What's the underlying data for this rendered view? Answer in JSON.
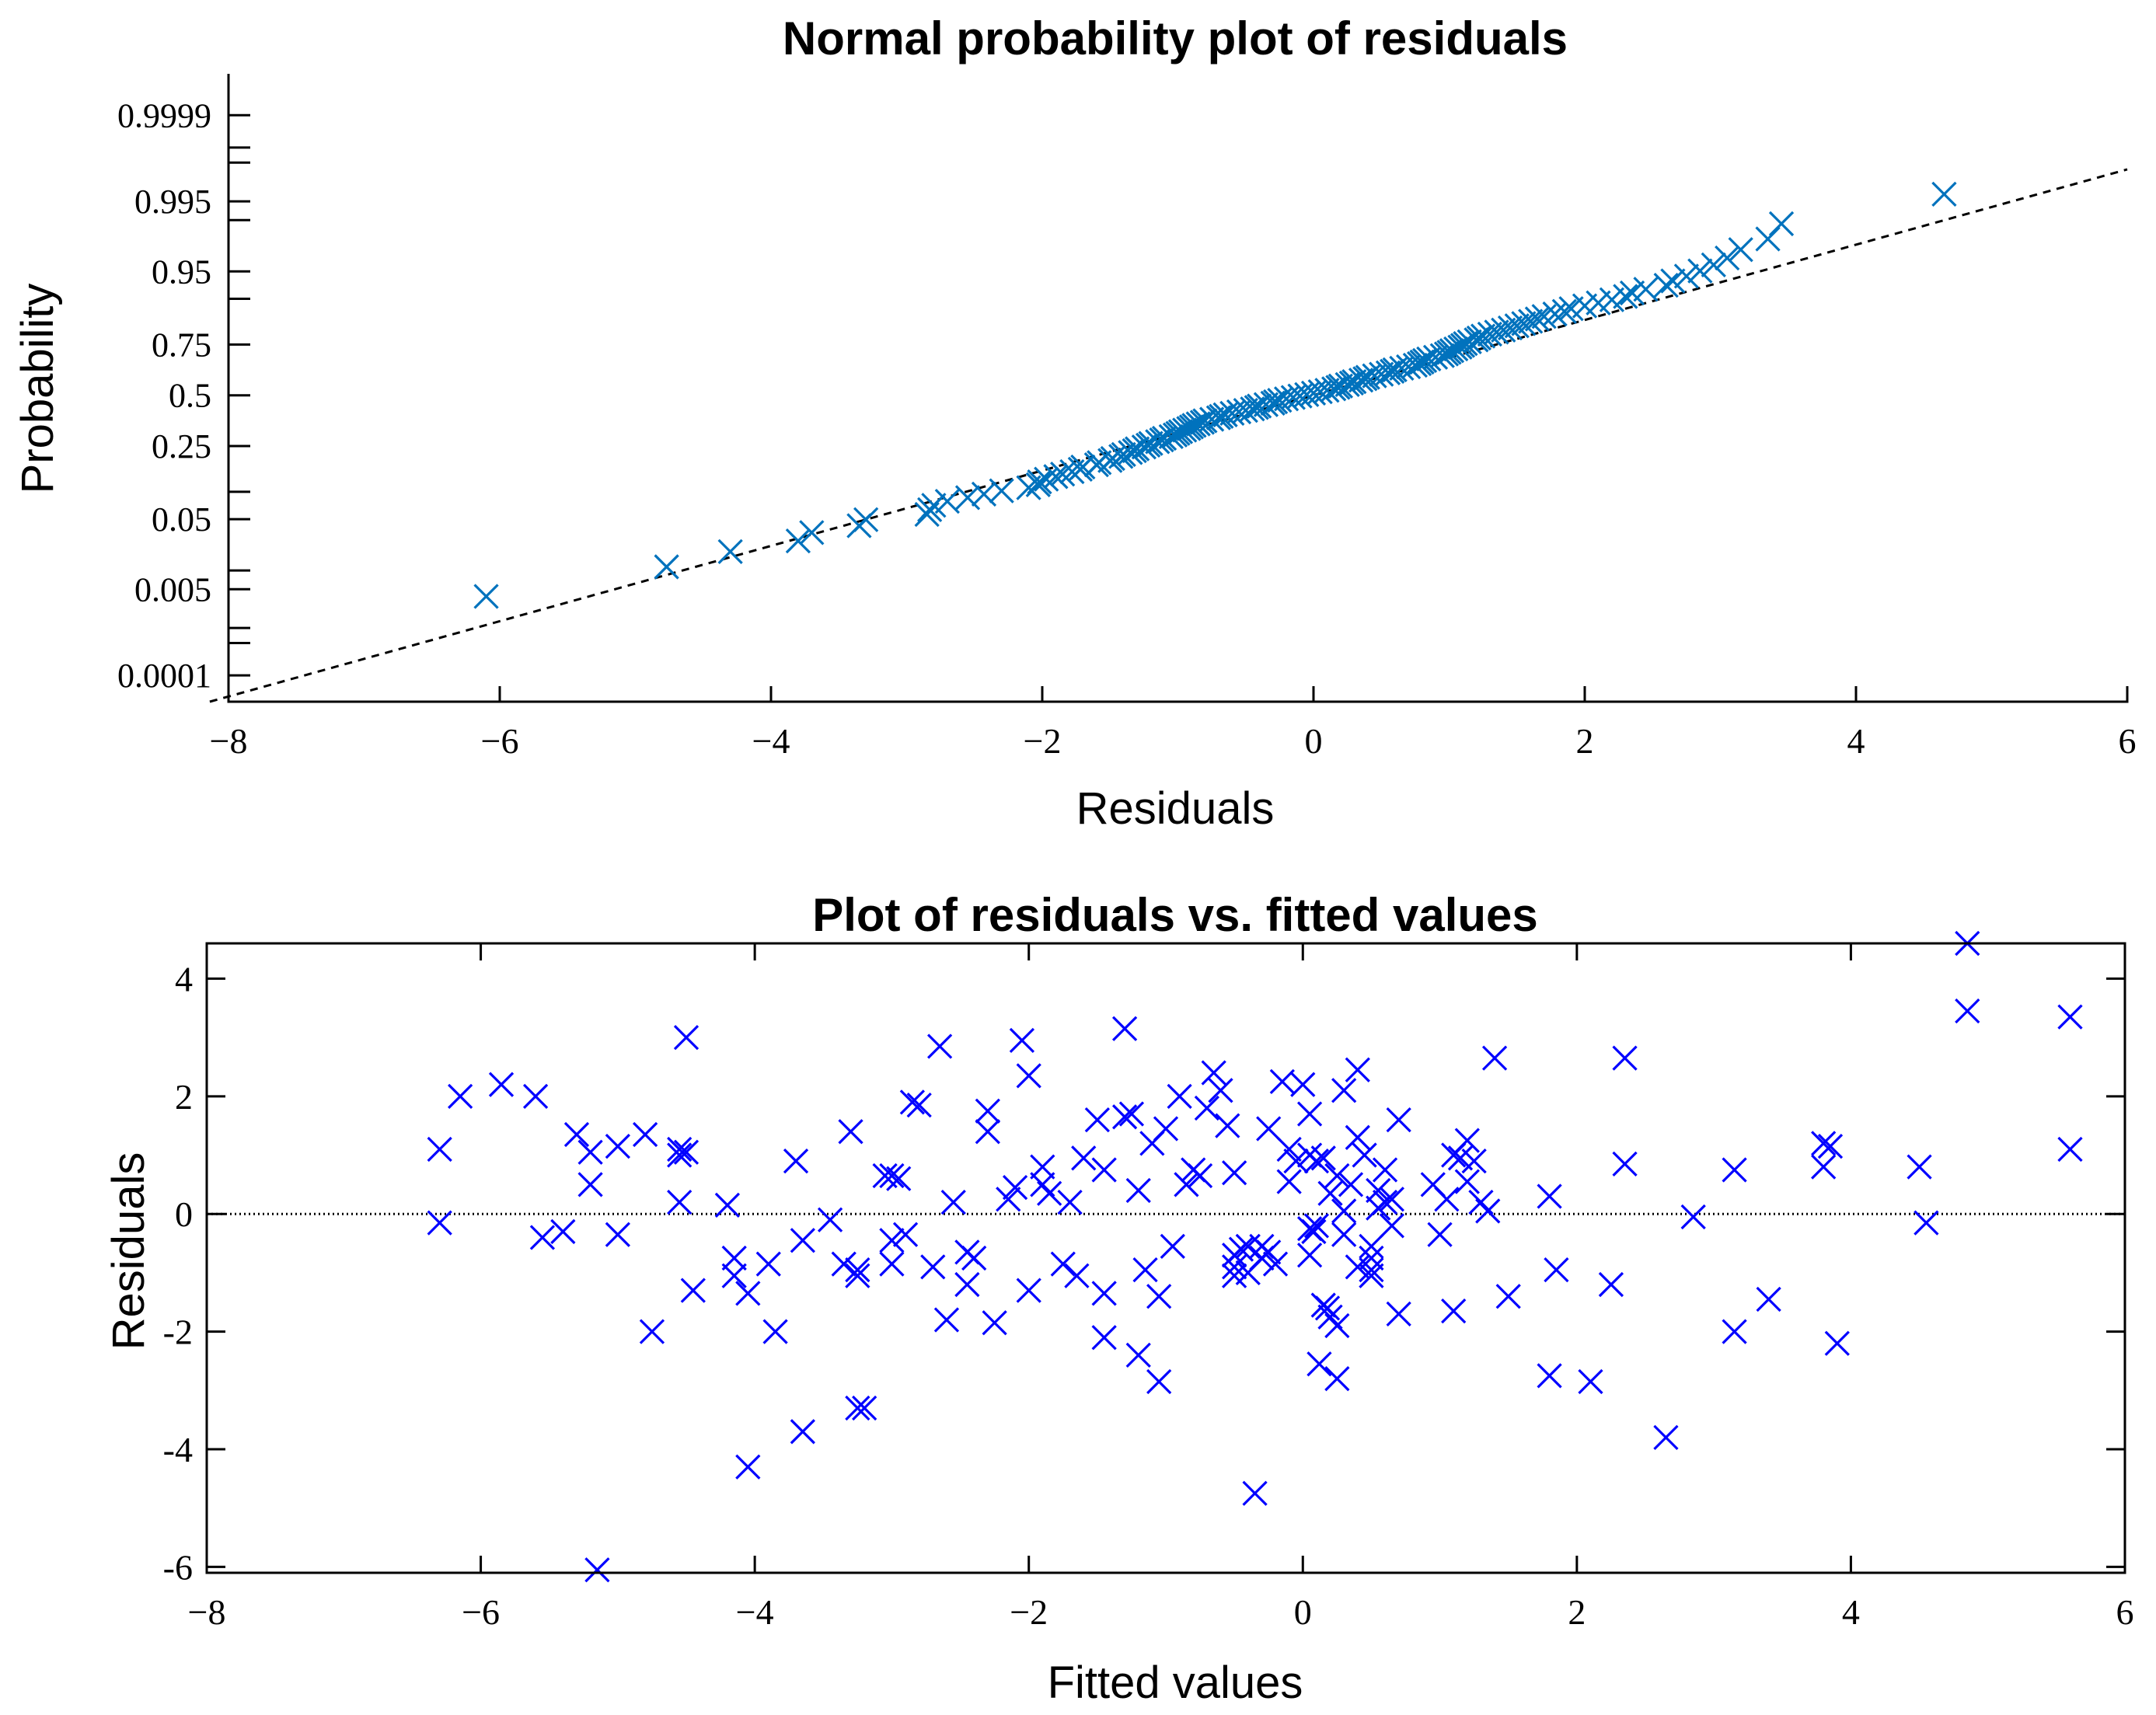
{
  "chart_data": [
    {
      "type": "scatter",
      "title": "Normal probability plot of residuals",
      "xlabel": "Residuals",
      "ylabel": "Probability",
      "xlim": [
        -8,
        6
      ],
      "xticks": [
        -8,
        -6,
        -4,
        -2,
        0,
        2,
        4,
        6
      ],
      "xtick_labels": [
        "−8",
        "−6",
        "−4",
        "−2",
        "0",
        "2",
        "4",
        "6"
      ],
      "yscale": "normal-probability",
      "yticks": [
        0.0001,
        0.005,
        0.05,
        0.25,
        0.5,
        0.75,
        0.95,
        0.995,
        0.9999
      ],
      "ytick_labels": [
        "0.0001",
        "0.005",
        "0.05",
        "0.25",
        "0.5",
        "0.75",
        "0.95",
        "0.995",
        "0.9999"
      ],
      "yminor": [
        0.0005,
        0.001,
        0.01,
        0.1,
        0.9,
        0.99,
        0.999,
        0.9995
      ],
      "marker_color": "#0072BD",
      "reference_line": {
        "style": "dashed",
        "color": "#000000",
        "slope_per_residual": 0.5,
        "intercept": 0.0
      },
      "residuals": [
        -6.1,
        -4.77,
        -4.3,
        -3.8,
        -3.7,
        -3.35,
        -3.3,
        -2.85,
        -2.83,
        -2.8,
        -2.7,
        -2.55,
        -2.43,
        -2.3,
        -2.1,
        -2.03,
        -2.02,
        -1.97,
        -1.9,
        -1.85,
        -1.78,
        -1.72,
        -1.7,
        -1.6,
        -1.58,
        -1.5,
        -1.48,
        -1.42,
        -1.4,
        -1.35,
        -1.32,
        -1.3,
        -1.25,
        -1.22,
        -1.2,
        -1.15,
        -1.12,
        -1.1,
        -1.05,
        -1.02,
        -1.0,
        -0.98,
        -0.95,
        -0.92,
        -0.9,
        -0.88,
        -0.85,
        -0.82,
        -0.8,
        -0.75,
        -0.7,
        -0.68,
        -0.65,
        -0.6,
        -0.55,
        -0.5,
        -0.45,
        -0.42,
        -0.4,
        -0.35,
        -0.3,
        -0.28,
        -0.25,
        -0.2,
        -0.15,
        -0.1,
        -0.05,
        0.0,
        0.05,
        0.1,
        0.15,
        0.18,
        0.2,
        0.25,
        0.28,
        0.3,
        0.35,
        0.38,
        0.4,
        0.45,
        0.5,
        0.55,
        0.58,
        0.6,
        0.65,
        0.7,
        0.75,
        0.78,
        0.8,
        0.82,
        0.85,
        0.9,
        0.95,
        0.98,
        1.0,
        1.02,
        1.05,
        1.08,
        1.1,
        1.12,
        1.15,
        1.2,
        1.22,
        1.25,
        1.3,
        1.35,
        1.4,
        1.45,
        1.5,
        1.55,
        1.6,
        1.65,
        1.7,
        1.78,
        1.85,
        1.9,
        2.0,
        2.1,
        2.2,
        2.3,
        2.35,
        2.45,
        2.6,
        2.65,
        2.75,
        2.85,
        2.95,
        3.05,
        3.15,
        3.35,
        3.45,
        4.65
      ]
    },
    {
      "type": "scatter",
      "title": "Plot of residuals vs. fitted values",
      "xlabel": "Fitted values",
      "ylabel": "Residuals",
      "xlim": [
        -8,
        6
      ],
      "ylim": [
        -6.1,
        4.6
      ],
      "xticks": [
        -8,
        -6,
        -4,
        -2,
        0,
        2,
        4,
        6
      ],
      "xtick_labels": [
        "−8",
        "−6",
        "−4",
        "−2",
        "0",
        "2",
        "4",
        "6"
      ],
      "yticks": [
        4,
        2,
        0,
        -2,
        -4,
        -6
      ],
      "ytick_labels": [
        "4",
        "2",
        "0",
        "-2",
        "-4",
        "-6"
      ],
      "marker_color": "#0000FF",
      "zero_line": {
        "y": 0,
        "style": "dotted",
        "color": "#000000"
      },
      "points": [
        [
          -6.3,
          1.1
        ],
        [
          -6.3,
          -0.15
        ],
        [
          -6.15,
          2.0
        ],
        [
          -5.85,
          2.2
        ],
        [
          -5.6,
          2.0
        ],
        [
          -5.55,
          -0.4
        ],
        [
          -5.4,
          -0.3
        ],
        [
          -5.3,
          1.35
        ],
        [
          -5.2,
          1.05
        ],
        [
          -5.2,
          0.5
        ],
        [
          -5.0,
          1.15
        ],
        [
          -5.0,
          -0.35
        ],
        [
          -4.8,
          1.35
        ],
        [
          -4.75,
          -2.0
        ],
        [
          -4.55,
          1.1
        ],
        [
          -4.55,
          1.0
        ],
        [
          -4.55,
          0.2
        ],
        [
          -4.5,
          1.05
        ],
        [
          -4.5,
          3.0
        ],
        [
          -4.45,
          -1.3
        ],
        [
          -4.2,
          0.15
        ],
        [
          -4.15,
          -0.75
        ],
        [
          -4.15,
          -1.05
        ],
        [
          -4.05,
          -1.35
        ],
        [
          -4.05,
          -4.3
        ],
        [
          -3.9,
          -0.85
        ],
        [
          -3.85,
          -2.0
        ],
        [
          -3.7,
          0.9
        ],
        [
          -3.65,
          -0.45
        ],
        [
          -3.65,
          -3.7
        ],
        [
          -3.45,
          -0.1
        ],
        [
          -3.35,
          -0.85
        ],
        [
          -3.3,
          1.4
        ],
        [
          -3.25,
          -1.05
        ],
        [
          -3.25,
          -0.95
        ],
        [
          -3.25,
          -3.3
        ],
        [
          -3.0,
          0.65
        ],
        [
          -3.0,
          -0.85
        ],
        [
          -3.0,
          -0.45
        ],
        [
          -3.2,
          -3.3
        ],
        [
          -3.05,
          0.65
        ],
        [
          -2.95,
          0.6
        ],
        [
          -2.9,
          -0.35
        ],
        [
          -2.85,
          1.9
        ],
        [
          -2.8,
          1.85
        ],
        [
          -2.7,
          -0.9
        ],
        [
          -2.65,
          2.85
        ],
        [
          -2.6,
          -1.8
        ],
        [
          -2.55,
          0.2
        ],
        [
          -2.45,
          -0.65
        ],
        [
          -2.45,
          -1.2
        ],
        [
          -2.4,
          -0.75
        ],
        [
          -2.3,
          1.75
        ],
        [
          -2.3,
          1.4
        ],
        [
          -2.25,
          -1.85
        ],
        [
          -2.15,
          0.25
        ],
        [
          -2.1,
          0.45
        ],
        [
          -2.05,
          2.95
        ],
        [
          -2.0,
          2.35
        ],
        [
          -2.0,
          -1.3
        ],
        [
          -1.9,
          0.5
        ],
        [
          -1.9,
          0.8
        ],
        [
          -1.85,
          0.35
        ],
        [
          -1.75,
          -0.85
        ],
        [
          -1.7,
          0.2
        ],
        [
          -1.65,
          -1.05
        ],
        [
          -1.6,
          0.95
        ],
        [
          -1.5,
          1.6
        ],
        [
          -1.45,
          0.75
        ],
        [
          -1.45,
          -1.35
        ],
        [
          -1.45,
          -2.1
        ],
        [
          -1.3,
          3.15
        ],
        [
          -1.3,
          1.65
        ],
        [
          -1.25,
          1.7
        ],
        [
          -1.2,
          -2.4
        ],
        [
          -1.2,
          0.4
        ],
        [
          -1.1,
          1.2
        ],
        [
          -1.05,
          -1.4
        ],
        [
          -1.05,
          -2.85
        ],
        [
          -0.95,
          -0.55
        ],
        [
          -0.9,
          2.0
        ],
        [
          -0.85,
          0.5
        ],
        [
          -0.8,
          0.75
        ],
        [
          -0.75,
          0.65
        ],
        [
          -0.7,
          1.8
        ],
        [
          -0.65,
          2.4
        ],
        [
          -0.6,
          2.1
        ],
        [
          -0.55,
          1.5
        ],
        [
          -0.5,
          0.7
        ],
        [
          -0.5,
          -0.7
        ],
        [
          -0.5,
          -0.9
        ],
        [
          -0.5,
          -1.05
        ],
        [
          -0.45,
          -0.6
        ],
        [
          -0.4,
          -0.55
        ],
        [
          -0.4,
          -1.0
        ],
        [
          -0.35,
          -4.75
        ],
        [
          -0.3,
          -0.55
        ],
        [
          -0.3,
          -0.75
        ],
        [
          -0.25,
          1.45
        ],
        [
          -0.25,
          -0.65
        ],
        [
          -0.2,
          -0.85
        ],
        [
          -0.15,
          2.25
        ],
        [
          -0.1,
          1.1
        ],
        [
          -0.1,
          0.55
        ],
        [
          -0.05,
          0.9
        ],
        [
          0.0,
          2.2
        ],
        [
          0.05,
          1.0
        ],
        [
          0.05,
          1.7
        ],
        [
          0.05,
          -0.7
        ],
        [
          0.1,
          0.9
        ],
        [
          0.15,
          -1.55
        ],
        [
          0.2,
          -1.75
        ],
        [
          0.25,
          -1.9
        ],
        [
          0.25,
          -2.8
        ],
        [
          0.3,
          0.05
        ],
        [
          0.3,
          -0.35
        ],
        [
          0.4,
          -0.9
        ],
        [
          0.05,
          -0.25
        ],
        [
          0.08,
          -0.3
        ],
        [
          0.1,
          -0.2
        ],
        [
          0.12,
          -2.55
        ],
        [
          0.15,
          0.95
        ],
        [
          0.18,
          -1.6
        ],
        [
          0.2,
          0.35
        ],
        [
          0.25,
          0.65
        ],
        [
          0.3,
          2.1
        ],
        [
          0.35,
          0.5
        ],
        [
          0.4,
          1.3
        ],
        [
          0.4,
          2.45
        ],
        [
          0.45,
          1.0
        ],
        [
          0.5,
          -0.55
        ],
        [
          0.5,
          -0.75
        ],
        [
          0.5,
          -0.95
        ],
        [
          0.5,
          -1.05
        ],
        [
          0.55,
          0.4
        ],
        [
          0.55,
          0.1
        ],
        [
          0.6,
          0.2
        ],
        [
          0.6,
          0.75
        ],
        [
          0.65,
          0.25
        ],
        [
          0.7,
          1.6
        ],
        [
          0.7,
          -1.7
        ],
        [
          0.95,
          0.5
        ],
        [
          1.0,
          -0.35
        ],
        [
          1.05,
          0.25
        ],
        [
          1.1,
          1.0
        ],
        [
          1.1,
          -1.65
        ],
        [
          1.15,
          0.95
        ],
        [
          1.2,
          0.55
        ],
        [
          1.2,
          1.25
        ],
        [
          1.25,
          0.9
        ],
        [
          1.3,
          0.2
        ],
        [
          1.35,
          0.05
        ],
        [
          1.4,
          2.65
        ],
        [
          1.5,
          -1.4
        ],
        [
          1.8,
          0.3
        ],
        [
          1.8,
          -2.75
        ],
        [
          1.85,
          -0.95
        ],
        [
          2.1,
          -2.85
        ],
        [
          2.25,
          -1.2
        ],
        [
          2.35,
          2.65
        ],
        [
          2.35,
          0.85
        ],
        [
          2.65,
          -3.8
        ],
        [
          2.85,
          -0.05
        ],
        [
          3.15,
          0.75
        ],
        [
          3.15,
          -2.0
        ],
        [
          3.4,
          -1.45
        ],
        [
          3.8,
          1.2
        ],
        [
          3.8,
          0.8
        ],
        [
          3.85,
          1.15
        ],
        [
          3.9,
          -2.2
        ],
        [
          4.5,
          0.8
        ],
        [
          4.55,
          -0.15
        ],
        [
          4.85,
          4.6
        ],
        [
          4.85,
          3.45
        ],
        [
          5.6,
          3.35
        ],
        [
          5.6,
          1.1
        ],
        [
          -5.15,
          -6.05
        ],
        [
          -1.15,
          -0.95
        ],
        [
          -1.0,
          1.45
        ],
        [
          0.65,
          -0.2
        ]
      ]
    }
  ]
}
